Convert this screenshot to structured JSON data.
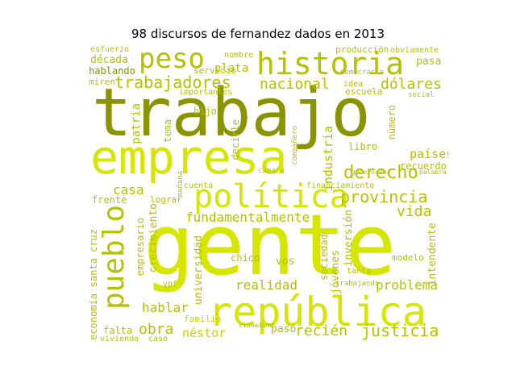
{
  "title": "98 discursos de fernandez dados en 2013",
  "colors": {
    "dark": "#8a9400",
    "mid": "#b4c200",
    "bright": "#d6e600",
    "light": "#c8d400"
  },
  "words": [
    {
      "text": "gente",
      "color": "bright"
    },
    {
      "text": "trabajo",
      "color": "dark"
    },
    {
      "text": "empresa",
      "color": "bright"
    },
    {
      "text": "república",
      "color": "bright"
    },
    {
      "text": "política",
      "color": "bright"
    },
    {
      "text": "historia",
      "color": "mid"
    },
    {
      "text": "peso",
      "color": "mid"
    },
    {
      "text": "pueblo",
      "color": "mid"
    },
    {
      "text": "trabajadores",
      "color": "mid"
    },
    {
      "text": "nacional",
      "color": "mid"
    },
    {
      "text": "dólares",
      "color": "mid"
    },
    {
      "text": "provincia",
      "color": "mid"
    },
    {
      "text": "derecho",
      "color": "mid"
    },
    {
      "text": "fundamentalmente",
      "color": "mid"
    },
    {
      "text": "justicia",
      "color": "mid"
    },
    {
      "text": "recién",
      "color": "mid"
    },
    {
      "text": "obra",
      "color": "mid"
    },
    {
      "text": "hablar",
      "color": "mid"
    },
    {
      "text": "casa",
      "color": "mid"
    },
    {
      "text": "vida",
      "color": "mid"
    },
    {
      "text": "realidad",
      "color": "mid"
    },
    {
      "text": "problema",
      "color": "mid"
    },
    {
      "text": "industria",
      "color": "mid"
    },
    {
      "text": "países",
      "color": "mid"
    },
    {
      "text": "década",
      "color": "mid"
    },
    {
      "text": "plata",
      "color": "mid"
    },
    {
      "text": "hablando",
      "color": "dark"
    },
    {
      "text": "esfuerzo",
      "color": "mid"
    },
    {
      "text": "hijo",
      "color": "mid"
    },
    {
      "text": "patria",
      "color": "mid"
    },
    {
      "text": "tema",
      "color": "mid"
    },
    {
      "text": "decirle",
      "color": "mid"
    },
    {
      "text": "crecimiento",
      "color": "mid"
    },
    {
      "text": "empresario",
      "color": "mid"
    },
    {
      "text": "universidad",
      "color": "mid"
    },
    {
      "text": "jóvenes",
      "color": "mid"
    },
    {
      "text": "inversión",
      "color": "mid"
    },
    {
      "text": "sociedad",
      "color": "mid"
    },
    {
      "text": "intendente",
      "color": "mid"
    },
    {
      "text": "economía",
      "color": "mid"
    },
    {
      "text": "santa cruz",
      "color": "mid"
    },
    {
      "text": "frente",
      "color": "mid"
    },
    {
      "text": "modelo",
      "color": "mid"
    },
    {
      "text": "chico",
      "color": "mid"
    },
    {
      "text": "vos",
      "color": "mid"
    },
    {
      "text": "néstor",
      "color": "light"
    },
    {
      "text": "pasó",
      "color": "mid"
    },
    {
      "text": "falta",
      "color": "mid"
    },
    {
      "text": "vivienda",
      "color": "mid"
    },
    {
      "text": "familia",
      "color": "light"
    },
    {
      "text": "recuerdo",
      "color": "mid"
    },
    {
      "text": "cuenta",
      "color": "mid"
    },
    {
      "text": "financiamiento",
      "color": "mid"
    },
    {
      "text": "lograr",
      "color": "mid"
    },
    {
      "text": "nombre",
      "color": "mid"
    },
    {
      "text": "servicio",
      "color": "mid"
    },
    {
      "text": "producción",
      "color": "mid"
    },
    {
      "text": "obviamente",
      "color": "mid"
    },
    {
      "text": "pasa",
      "color": "mid"
    },
    {
      "text": "escuela",
      "color": "mid"
    },
    {
      "text": "idea",
      "color": "mid"
    },
    {
      "text": "número",
      "color": "mid"
    },
    {
      "text": "miren",
      "color": "mid"
    },
    {
      "text": "importantes",
      "color": "mid"
    },
    {
      "text": "tanta",
      "color": "mid"
    },
    {
      "text": "ypf",
      "color": "mid"
    },
    {
      "text": "caso",
      "color": "mid"
    },
    {
      "text": "cámara",
      "color": "mid"
    },
    {
      "text": "compañero",
      "color": "mid"
    },
    {
      "text": "trabajando",
      "color": "mid"
    },
    {
      "text": "mañana",
      "color": "mid"
    },
    {
      "text": "democracia",
      "color": "mid"
    },
    {
      "text": "ciudadano",
      "color": "mid"
    },
    {
      "text": "social",
      "color": "mid"
    },
    {
      "text": "gobernador",
      "color": "mid"
    },
    {
      "text": "palabra",
      "color": "mid"
    },
    {
      "text": "libro",
      "color": "mid"
    }
  ]
}
